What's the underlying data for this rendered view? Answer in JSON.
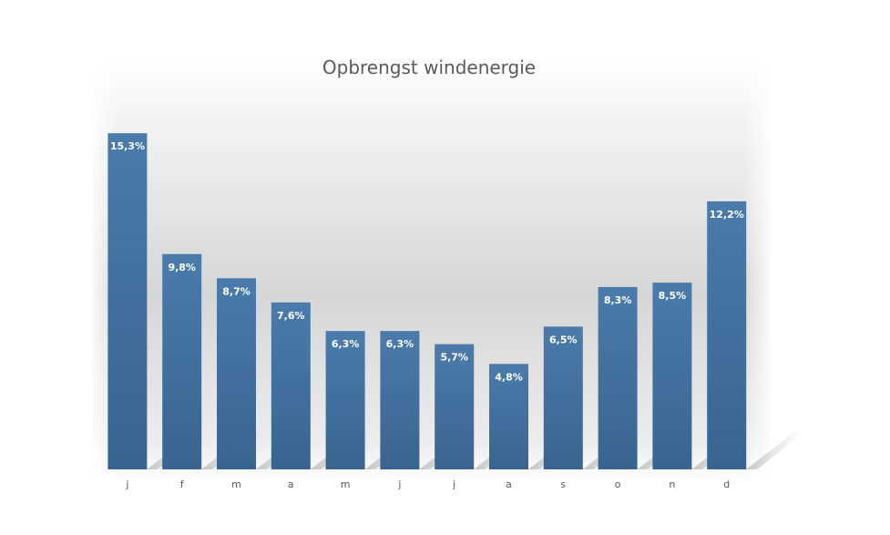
{
  "chart_data": {
    "type": "bar",
    "title": "Opbrengst windenergie",
    "xlabel": "",
    "ylabel": "",
    "categories": [
      "j",
      "f",
      "m",
      "a",
      "m",
      "j",
      "j",
      "a",
      "s",
      "o",
      "n",
      "d"
    ],
    "values": [
      15.3,
      9.8,
      8.7,
      7.6,
      6.3,
      6.3,
      5.7,
      4.8,
      6.5,
      8.3,
      8.5,
      12.2
    ],
    "data_labels": [
      "15,3%",
      "9,8%",
      "8,7%",
      "7,6%",
      "6,3%",
      "6,3%",
      "5,7%",
      "4,8%",
      "6,5%",
      "8,3%",
      "8,5%",
      "12,2%"
    ],
    "value_unit": "%",
    "ylim": [
      0,
      19
    ],
    "grid": false,
    "legend": "none",
    "colors": {
      "bar_top": "#4a7bab",
      "bar_bottom": "#3a6490",
      "title": "#595959",
      "tick": "#595959",
      "data_label": "#ffffff"
    }
  }
}
